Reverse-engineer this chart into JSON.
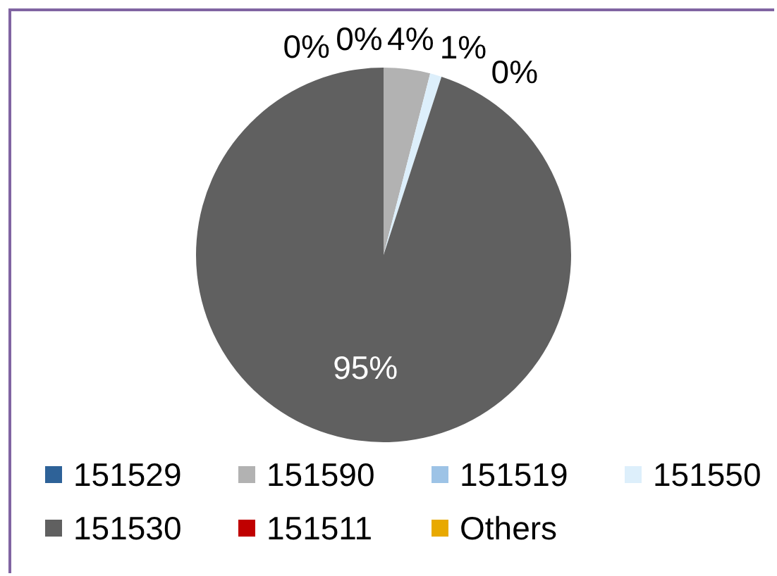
{
  "chart_data": {
    "type": "pie",
    "categories": [
      "151529",
      "151590",
      "151519",
      "151550",
      "151530",
      "151511",
      "Others"
    ],
    "values": [
      0,
      4,
      0,
      1,
      95,
      0,
      0
    ],
    "colors": [
      "#2e6298",
      "#b2b2b2",
      "#9dc3e6",
      "#ddeffb",
      "#606060",
      "#c00000",
      "#e8a900"
    ],
    "value_labels": [
      "0%",
      "4%",
      "0%",
      "1%",
      "95%",
      "0%",
      null
    ],
    "legend": "bottom"
  }
}
